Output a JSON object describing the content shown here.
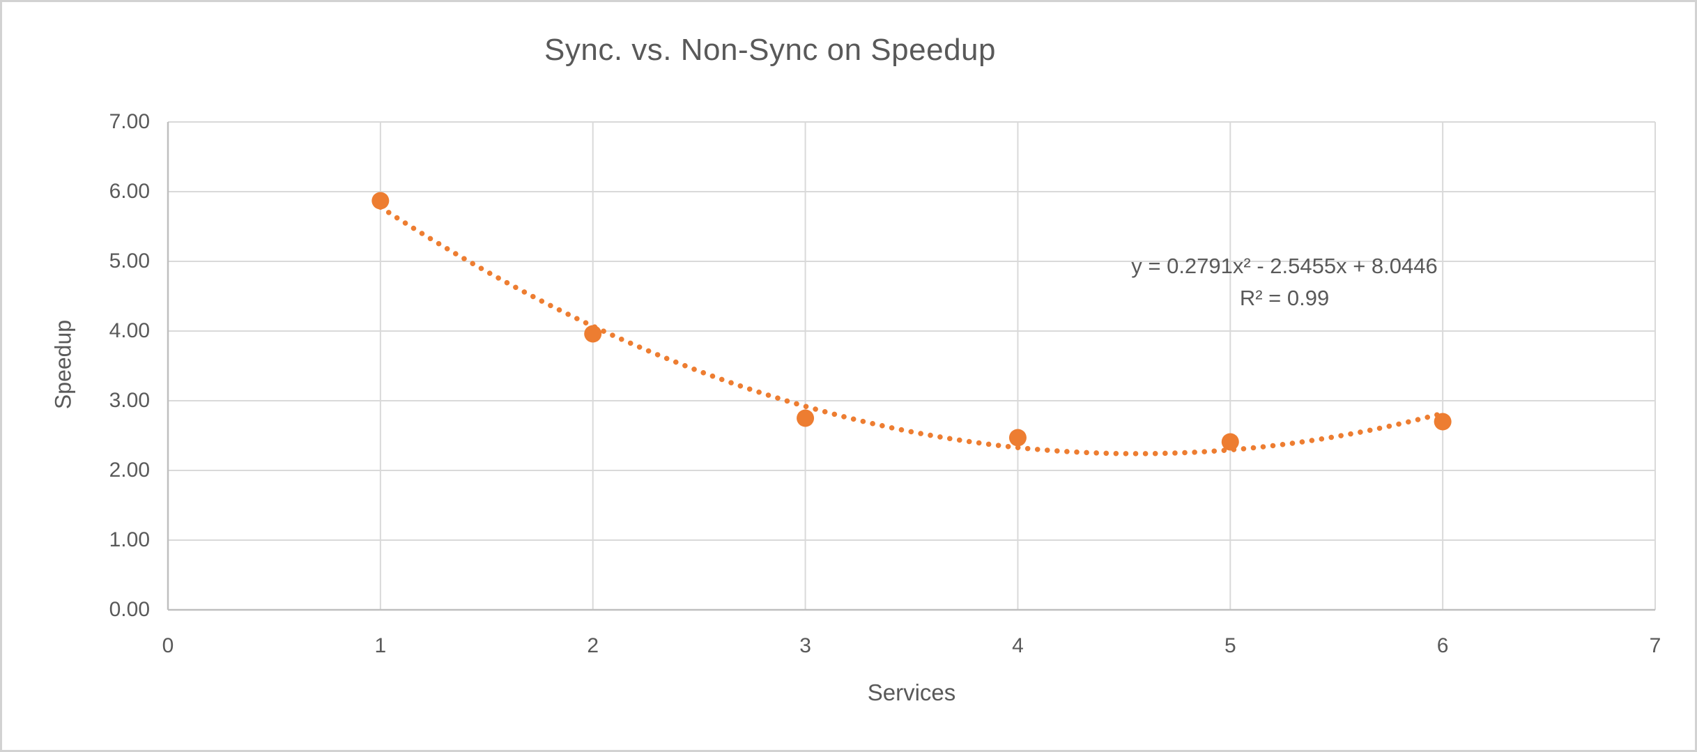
{
  "chart_data": {
    "type": "scatter",
    "title": "Sync. vs. Non-Sync on Speedup",
    "xlabel": "Services",
    "ylabel": "Speedup",
    "xlim": [
      0,
      7
    ],
    "ylim": [
      0,
      7
    ],
    "x_ticks": [
      0,
      1,
      2,
      3,
      4,
      5,
      6,
      7
    ],
    "x_tick_labels": [
      "0",
      "1",
      "2",
      "3",
      "4",
      "5",
      "6",
      "7"
    ],
    "y_ticks": [
      0,
      1,
      2,
      3,
      4,
      5,
      6,
      7
    ],
    "y_tick_labels": [
      "0.00",
      "1.00",
      "2.00",
      "3.00",
      "4.00",
      "5.00",
      "6.00",
      "7.00"
    ],
    "grid": true,
    "legend": false,
    "series": [
      {
        "name": "Speedup",
        "marker": "circle",
        "x": [
          1,
          2,
          3,
          4,
          5,
          6
        ],
        "values": [
          5.87,
          3.96,
          2.75,
          2.47,
          2.41,
          2.7
        ]
      }
    ],
    "trendline": {
      "type": "polynomial",
      "order": 2,
      "a": 0.2791,
      "b": -2.5455,
      "c": 8.0446,
      "r_squared": 0.99,
      "x_range": [
        1,
        6
      ],
      "style": "dotted",
      "equation_label": "y = 0.2791x² - 2.5455x + 8.0446",
      "r_squared_label": "R² = 0.99"
    },
    "colors": {
      "series": "#ED7D31",
      "gridline": "#D9D9D9",
      "axis_line": "#BFBFBF",
      "text": "#595959",
      "background": "#FFFFFF"
    }
  }
}
